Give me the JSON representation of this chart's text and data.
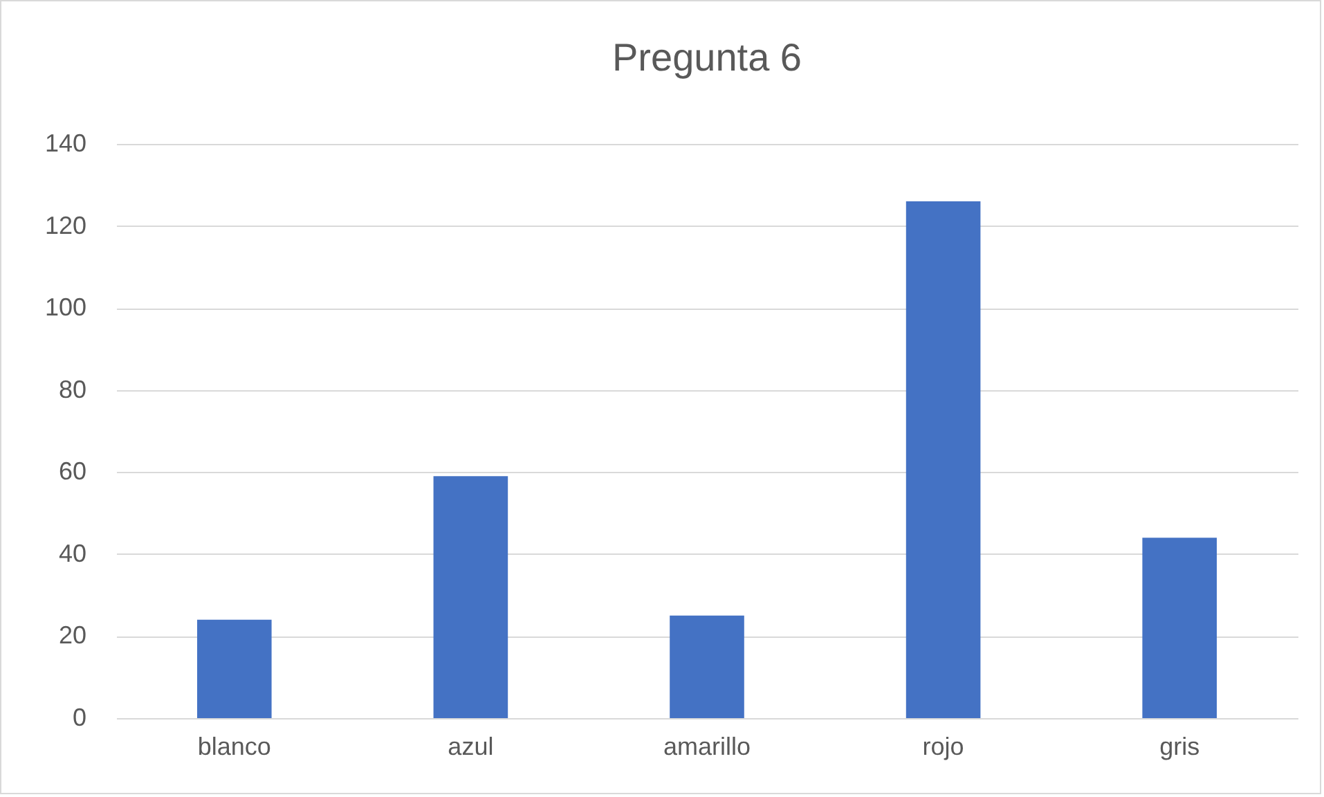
{
  "chart_data": {
    "type": "bar",
    "title": "Pregunta 6",
    "categories": [
      "blanco",
      "azul",
      "amarillo",
      "rojo",
      "gris"
    ],
    "values": [
      24,
      59,
      25,
      126,
      44
    ],
    "color": "#4472c4",
    "ylim": [
      0,
      140
    ],
    "yticks": [
      0,
      20,
      40,
      60,
      80,
      100,
      120,
      140
    ],
    "grid": "y",
    "legend": false
  }
}
